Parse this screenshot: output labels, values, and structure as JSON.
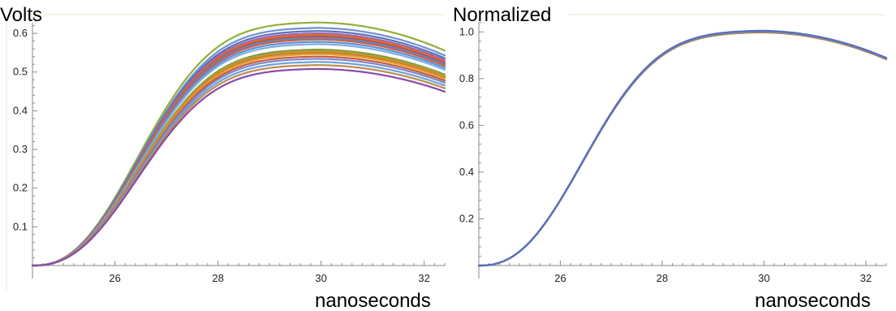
{
  "chart_data": [
    {
      "type": "line",
      "title": "",
      "ylabel": "Volts",
      "xlabel": "nanoseconds",
      "xlim": [
        24.4,
        32.4
      ],
      "ylim": [
        0,
        0.64
      ],
      "xticks": [
        26,
        28,
        30,
        32
      ],
      "yticks": [
        0.1,
        0.2,
        0.3,
        0.4,
        0.5,
        0.6
      ],
      "grid": false,
      "curve_model": {
        "start": 24.4,
        "width": 2.55,
        "peak_x": 29.9,
        "decay": 0.0185,
        "end": 32.4
      },
      "series": [
        {
          "peak": 0.628,
          "color": "#8fb03a"
        },
        {
          "peak": 0.614,
          "color": "#6f8fd0"
        },
        {
          "peak": 0.606,
          "color": "#5a6fb8"
        },
        {
          "peak": 0.6,
          "color": "#9a63b0"
        },
        {
          "peak": 0.596,
          "color": "#e07030"
        },
        {
          "peak": 0.592,
          "color": "#c94f3d"
        },
        {
          "peak": 0.588,
          "color": "#4a90d9"
        },
        {
          "peak": 0.584,
          "color": "#d95b3a"
        },
        {
          "peak": 0.578,
          "color": "#5b8fd6"
        },
        {
          "peak": 0.572,
          "color": "#7aaee0"
        },
        {
          "peak": 0.558,
          "color": "#8a9a2e"
        },
        {
          "peak": 0.554,
          "color": "#b0a040"
        },
        {
          "peak": 0.55,
          "color": "#d97a2a"
        },
        {
          "peak": 0.546,
          "color": "#e0a030"
        },
        {
          "peak": 0.54,
          "color": "#c85a3a"
        },
        {
          "peak": 0.534,
          "color": "#7a86d0"
        },
        {
          "peak": 0.526,
          "color": "#6aa0d8"
        },
        {
          "peak": 0.518,
          "color": "#c08a4a"
        },
        {
          "peak": 0.508,
          "color": "#8a4aa8"
        }
      ]
    },
    {
      "type": "line",
      "title": "Normalized",
      "ylabel": "",
      "xlabel": "nanoseconds",
      "xlim": [
        24.4,
        32.4
      ],
      "ylim": [
        0,
        1.06
      ],
      "xticks": [
        26,
        28,
        30,
        32
      ],
      "yticks": [
        0.2,
        0.4,
        0.6,
        0.8,
        1.0
      ],
      "grid": false,
      "curve_model": {
        "start": 24.4,
        "width": 2.55,
        "peak_x": 29.9,
        "decay": 0.0185,
        "end": 32.4
      },
      "series": [
        {
          "peak": 1.0,
          "color": "#e07030"
        },
        {
          "peak": 0.998,
          "color": "#c94f3d"
        },
        {
          "peak": 1.0,
          "color": "#8fb03a"
        },
        {
          "peak": 1.002,
          "color": "#9a63b0"
        },
        {
          "peak": 1.003,
          "color": "#4a90d9"
        },
        {
          "peak": 1.004,
          "color": "#6f8fd0"
        },
        {
          "peak": 1.005,
          "color": "#5a6fb8"
        }
      ]
    }
  ]
}
